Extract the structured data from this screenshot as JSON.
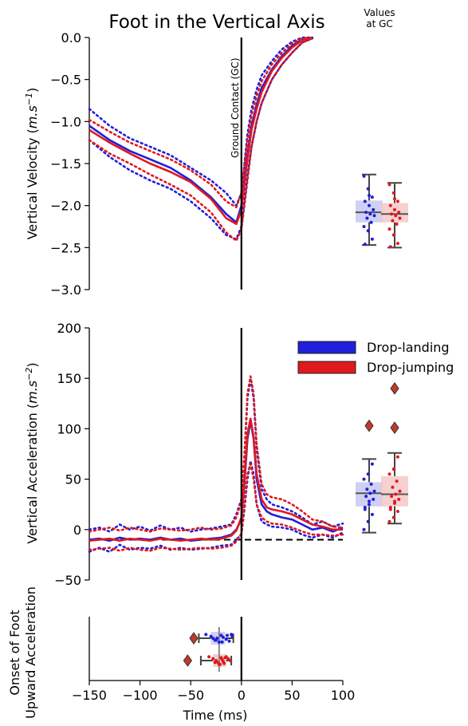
{
  "title": "Foot in the Vertical Axis",
  "side_header": [
    "Values",
    "at GC"
  ],
  "gc_label": "Ground Contact (GC)",
  "legend": [
    {
      "name": "Drop-landing",
      "color": "#1f1fdc"
    },
    {
      "name": "Drop-jumping",
      "color": "#e0191c"
    }
  ],
  "chart_data": [
    {
      "type": "line",
      "ylabel_main": "Vertical Velocity (",
      "ylabel_unit": "m.s",
      "ylabel_exp": "−1",
      "ylabel_close": ")",
      "xlim": [
        -150,
        100
      ],
      "ylim": [
        -3.0,
        0.0
      ],
      "yticks": [
        0.0,
        -0.5,
        -1.0,
        -1.5,
        -2.0,
        -2.5,
        -3.0
      ],
      "ytick_labels": [
        "0.0",
        "−0.5",
        "−1.0",
        "−1.5",
        "−2.0",
        "−2.5",
        "−3.0"
      ],
      "x": [
        -150,
        -130,
        -110,
        -90,
        -70,
        -50,
        -30,
        -15,
        -5,
        0,
        3,
        6,
        10,
        15,
        20,
        30,
        40,
        50,
        60,
        70,
        80,
        90,
        100
      ],
      "series": [
        {
          "name": "Drop-landing",
          "style": "mean",
          "values": [
            -1.05,
            -1.22,
            -1.35,
            -1.45,
            -1.55,
            -1.7,
            -1.9,
            -2.1,
            -2.2,
            -2.0,
            -1.7,
            -1.4,
            -1.05,
            -0.8,
            -0.6,
            -0.38,
            -0.22,
            -0.1,
            -0.02,
            0.0,
            null,
            null,
            null
          ]
        },
        {
          "name": "Drop-landing",
          "style": "sd",
          "values": [
            -0.85,
            -1.05,
            -1.2,
            -1.3,
            -1.4,
            -1.55,
            -1.7,
            -1.85,
            -2.0,
            -1.85,
            -1.5,
            -1.15,
            -0.85,
            -0.62,
            -0.45,
            -0.28,
            -0.14,
            -0.05,
            0.0,
            0.0,
            null,
            null,
            null
          ]
        },
        {
          "name": "Drop-landing",
          "style": "sd",
          "values": [
            -1.22,
            -1.42,
            -1.58,
            -1.7,
            -1.8,
            -1.95,
            -2.15,
            -2.35,
            -2.4,
            -2.25,
            -1.95,
            -1.65,
            -1.3,
            -1.0,
            -0.78,
            -0.5,
            -0.32,
            -0.18,
            -0.06,
            -0.01,
            null,
            null,
            null
          ]
        },
        {
          "name": "Drop-jumping",
          "style": "mean",
          "values": [
            -1.1,
            -1.25,
            -1.38,
            -1.5,
            -1.6,
            -1.72,
            -1.92,
            -2.15,
            -2.22,
            -2.05,
            -1.75,
            -1.45,
            -1.1,
            -0.85,
            -0.65,
            -0.4,
            -0.24,
            -0.12,
            -0.03,
            0.0,
            null,
            null,
            null
          ]
        },
        {
          "name": "Drop-jumping",
          "style": "sd",
          "values": [
            -0.98,
            -1.12,
            -1.25,
            -1.35,
            -1.45,
            -1.58,
            -1.75,
            -1.95,
            -2.02,
            -1.85,
            -1.52,
            -1.22,
            -0.92,
            -0.7,
            -0.52,
            -0.32,
            -0.18,
            -0.07,
            -0.01,
            0.0,
            null,
            null,
            null
          ]
        },
        {
          "name": "Drop-jumping",
          "style": "sd",
          "values": [
            -1.22,
            -1.38,
            -1.5,
            -1.63,
            -1.75,
            -1.88,
            -2.08,
            -2.32,
            -2.42,
            -2.28,
            -2.0,
            -1.7,
            -1.3,
            -1.0,
            -0.78,
            -0.5,
            -0.32,
            -0.18,
            -0.06,
            -0.01,
            null,
            null,
            null
          ]
        }
      ],
      "gc_boxes": [
        {
          "name": "Drop-landing",
          "whisker_low": -2.47,
          "q1": -2.2,
          "median": -2.08,
          "q3": -1.94,
          "whisker_high": -1.63,
          "points": [
            -1.65,
            -1.8,
            -1.9,
            -1.95,
            -2.0,
            -2.05,
            -2.08,
            -2.1,
            -2.12,
            -2.15,
            -2.2,
            -2.25,
            -2.3,
            -2.4,
            -2.46,
            -1.88
          ]
        },
        {
          "name": "Drop-jumping",
          "whisker_low": -2.5,
          "q1": -2.2,
          "median": -2.1,
          "q3": -1.97,
          "whisker_high": -1.73,
          "points": [
            -1.75,
            -1.85,
            -1.95,
            -2.0,
            -2.05,
            -2.08,
            -2.1,
            -2.12,
            -2.15,
            -2.18,
            -2.22,
            -2.28,
            -2.35,
            -2.45,
            -2.49,
            -1.92
          ]
        }
      ]
    },
    {
      "type": "line",
      "ylabel_main": "Vertical Acceleration (",
      "ylabel_unit": "m.s",
      "ylabel_exp": "−2",
      "ylabel_close": ")",
      "xlim": [
        -150,
        100
      ],
      "ylim": [
        -50,
        200
      ],
      "yticks": [
        200,
        150,
        100,
        50,
        0,
        -50
      ],
      "ytick_labels": [
        "200",
        "150",
        "100",
        "50",
        "0",
        "−50"
      ],
      "baseline": -10,
      "x": [
        -150,
        -140,
        -130,
        -120,
        -110,
        -100,
        -90,
        -80,
        -70,
        -60,
        -50,
        -40,
        -30,
        -20,
        -10,
        -5,
        0,
        3,
        6,
        9,
        12,
        15,
        20,
        25,
        30,
        40,
        50,
        60,
        70,
        80,
        90,
        100
      ],
      "series": [
        {
          "name": "Drop-landing",
          "style": "mean",
          "values": [
            -10,
            -9,
            -11,
            -8,
            -10,
            -9,
            -10,
            -8,
            -10,
            -9,
            -11,
            -10,
            -9,
            -8,
            -5,
            0,
            10,
            45,
            90,
            108,
            90,
            50,
            25,
            18,
            15,
            12,
            10,
            5,
            0,
            2,
            -2,
            2
          ]
        },
        {
          "name": "Drop-landing",
          "style": "sd",
          "values": [
            0,
            2,
            -2,
            5,
            0,
            3,
            -1,
            4,
            0,
            2,
            -2,
            0,
            1,
            3,
            5,
            15,
            30,
            70,
            130,
            150,
            130,
            80,
            40,
            30,
            25,
            22,
            18,
            12,
            5,
            8,
            3,
            6
          ]
        },
        {
          "name": "Drop-landing",
          "style": "sd",
          "values": [
            -22,
            -18,
            -22,
            -15,
            -20,
            -18,
            -19,
            -16,
            -20,
            -18,
            -20,
            -19,
            -18,
            -16,
            -15,
            -10,
            -5,
            20,
            50,
            68,
            55,
            25,
            8,
            5,
            3,
            2,
            0,
            -5,
            -8,
            -5,
            -8,
            -3
          ]
        },
        {
          "name": "Drop-jumping",
          "style": "mean",
          "values": [
            -11,
            -10,
            -9,
            -11,
            -9,
            -10,
            -11,
            -9,
            -10,
            -11,
            -10,
            -9,
            -10,
            -9,
            -6,
            -1,
            12,
            50,
            95,
            110,
            92,
            55,
            30,
            22,
            20,
            18,
            15,
            10,
            5,
            3,
            0,
            0
          ]
        },
        {
          "name": "Drop-jumping",
          "style": "sd",
          "values": [
            -2,
            0,
            2,
            -1,
            2,
            0,
            -2,
            1,
            0,
            -1,
            0,
            2,
            0,
            1,
            4,
            12,
            28,
            75,
            135,
            152,
            135,
            85,
            45,
            35,
            32,
            30,
            25,
            18,
            10,
            8,
            3,
            2
          ]
        },
        {
          "name": "Drop-jumping",
          "style": "sd",
          "values": [
            -20,
            -19,
            -18,
            -21,
            -18,
            -20,
            -21,
            -18,
            -19,
            -20,
            -19,
            -18,
            -19,
            -18,
            -16,
            -12,
            -4,
            22,
            55,
            65,
            50,
            25,
            12,
            8,
            6,
            5,
            2,
            -2,
            -5,
            -5,
            -6,
            -5
          ]
        }
      ],
      "gc_boxes": [
        {
          "name": "Drop-landing",
          "whisker_low": -3,
          "q1": 23,
          "median": 36,
          "q3": 47,
          "whisker_high": 70,
          "points": [
            0,
            8,
            15,
            20,
            25,
            30,
            33,
            36,
            38,
            40,
            45,
            50,
            55,
            65,
            22,
            28
          ],
          "outliers": [
            103
          ]
        },
        {
          "name": "Drop-jumping",
          "whisker_low": 6,
          "q1": 23,
          "median": 35,
          "q3": 53,
          "whisker_high": 76,
          "points": [
            8,
            12,
            18,
            22,
            26,
            30,
            33,
            35,
            38,
            42,
            48,
            55,
            60,
            72,
            20,
            28
          ],
          "outliers": [
            101,
            140
          ]
        }
      ]
    },
    {
      "type": "box",
      "ylabel_line1": "Onset of Foot",
      "ylabel_line2": "Upward Acceleration",
      "xlabel": "Time (ms)",
      "xlim": [
        -150,
        100
      ],
      "xticks": [
        -150,
        -100,
        -50,
        0,
        50,
        100
      ],
      "xtick_labels": [
        "−150",
        "−100",
        "−50",
        "0",
        "50",
        "100"
      ],
      "boxes": [
        {
          "name": "Drop-landing",
          "whisker_low": -42,
          "q1": -30,
          "median": -22,
          "q3": -16,
          "whisker_high": -8,
          "points": [
            -35,
            -30,
            -28,
            -25,
            -22,
            -20,
            -18,
            -15,
            -12,
            -10,
            -9,
            -24,
            -26,
            -19,
            -14
          ],
          "outliers": [
            -47
          ]
        },
        {
          "name": "Drop-jumping",
          "whisker_low": -40,
          "q1": -28,
          "median": -22,
          "q3": -15,
          "whisker_high": -10,
          "points": [
            -32,
            -28,
            -25,
            -23,
            -22,
            -20,
            -19,
            -18,
            -17,
            -15,
            -13,
            -11,
            -26,
            -21,
            -16
          ],
          "outliers": [
            -53
          ]
        }
      ]
    }
  ]
}
